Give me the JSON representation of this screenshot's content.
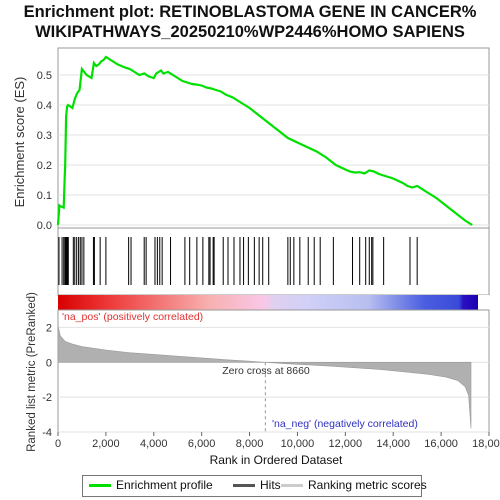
{
  "title_line1": "Enrichment plot: RETINOBLASTOMA GENE IN CANCER%",
  "title_line2": "WIKIPATHWAYS_20250210%WP2446%HOMO SAPIENS",
  "chart_data": {
    "type": "line",
    "es_panel": {
      "ylabel": "Enrichment score (ES)",
      "ylim": [
        -0.01,
        0.59
      ],
      "yticks": [
        "0.0",
        "0.1",
        "0.2",
        "0.3",
        "0.4",
        "0.5"
      ],
      "grid": true,
      "series": [
        {
          "name": "Enrichment profile",
          "color": "#00e000",
          "x": [
            0,
            60,
            120,
            180,
            240,
            280,
            300,
            340,
            380,
            420,
            600,
            700,
            800,
            900,
            1000,
            1100,
            1200,
            1300,
            1400,
            1500,
            1600,
            1700,
            1800,
            1900,
            2000,
            2200,
            2500,
            2800,
            3000,
            3200,
            3400,
            3600,
            3800,
            4000,
            4100,
            4200,
            4300,
            4400,
            4600,
            4800,
            5000,
            5200,
            5400,
            5600,
            5800,
            6000,
            6200,
            6400,
            6600,
            6800,
            7000,
            7300,
            7600,
            8000,
            8400,
            8800,
            9200,
            9600,
            10000,
            10400,
            10800,
            11200,
            11600,
            12000,
            12200,
            12400,
            12600,
            12800,
            13000,
            13200,
            13400,
            13600,
            14000,
            14400,
            14600,
            14800,
            15000,
            15400,
            15800,
            16200,
            16600,
            17000,
            17300
          ],
          "values": [
            0.0,
            0.065,
            0.062,
            0.06,
            0.058,
            0.16,
            0.2,
            0.36,
            0.395,
            0.4,
            0.39,
            0.42,
            0.44,
            0.45,
            0.52,
            0.51,
            0.5,
            0.495,
            0.49,
            0.54,
            0.53,
            0.535,
            0.545,
            0.55,
            0.56,
            0.55,
            0.535,
            0.525,
            0.52,
            0.51,
            0.5,
            0.505,
            0.495,
            0.49,
            0.505,
            0.51,
            0.515,
            0.505,
            0.51,
            0.5,
            0.49,
            0.48,
            0.475,
            0.47,
            0.468,
            0.465,
            0.458,
            0.455,
            0.45,
            0.445,
            0.435,
            0.425,
            0.41,
            0.39,
            0.365,
            0.34,
            0.315,
            0.29,
            0.275,
            0.26,
            0.245,
            0.225,
            0.2,
            0.185,
            0.178,
            0.175,
            0.176,
            0.172,
            0.182,
            0.178,
            0.17,
            0.165,
            0.155,
            0.14,
            0.13,
            0.125,
            0.13,
            0.11,
            0.09,
            0.065,
            0.04,
            0.015,
            0.0
          ]
        }
      ]
    },
    "hits_panel": {
      "name": "Hits",
      "positions": [
        40,
        170,
        240,
        290,
        310,
        330,
        350,
        380,
        400,
        430,
        640,
        700,
        780,
        860,
        930,
        1000,
        1080,
        1480,
        1520,
        1760,
        2000,
        2950,
        3050,
        3600,
        3680,
        4050,
        4150,
        4250,
        4350,
        4700,
        5300,
        5500,
        5800,
        6050,
        6300,
        6350,
        6480,
        6520,
        6900,
        7100,
        7350,
        7600,
        7750,
        7950,
        8200,
        8400,
        8550,
        8800,
        9600,
        9700,
        9850,
        10100,
        10450,
        10700,
        10950,
        11500,
        12300,
        12600,
        12850,
        13000,
        13100,
        13150,
        13600,
        14700,
        15000
      ]
    },
    "ranked_panel": {
      "ylabel": "Ranked list metric (PreRanked)",
      "ylim": [
        -4,
        3
      ],
      "yticks": [
        "-4",
        "-2",
        "0",
        "2"
      ],
      "grid": true,
      "series_name": "Ranking metric scores",
      "x": [
        0,
        100,
        300,
        600,
        1000,
        2000,
        3000,
        4000,
        5000,
        6000,
        7000,
        8000,
        8660,
        9500,
        10500,
        11500,
        12500,
        13500,
        14500,
        15500,
        16200,
        16700,
        17000,
        17150,
        17250
      ],
      "values": [
        2.1,
        1.5,
        1.2,
        1.05,
        0.9,
        0.7,
        0.55,
        0.45,
        0.35,
        0.25,
        0.15,
        0.06,
        0.0,
        -0.08,
        -0.15,
        -0.23,
        -0.32,
        -0.42,
        -0.55,
        -0.7,
        -0.85,
        -1.05,
        -1.4,
        -1.9,
        -3.8
      ]
    },
    "x_axis": {
      "xlabel": "Rank in Ordered Dataset",
      "xlim": [
        0,
        18000
      ],
      "xticks": [
        "0",
        "2,000",
        "4,000",
        "6,000",
        "8,000",
        "10,000",
        "12,000",
        "14,000",
        "16,000",
        "18,000"
      ]
    },
    "annotations": {
      "pos_label": "'na_pos' (positively correlated)",
      "neg_label": "'na_neg' (negatively correlated)",
      "zero_cross": "Zero cross at 8660"
    },
    "colors": {
      "profile": "#00e000",
      "hits": "#000000",
      "pos": "#e02020",
      "neg": "#3030d0",
      "pos_text": "#e03030",
      "neg_text": "#3030c0"
    }
  },
  "legend": {
    "items": [
      {
        "label": "Enrichment profile",
        "color": "#00e000"
      },
      {
        "label": "Hits",
        "color": "#555555"
      },
      {
        "label": "Ranking metric scores",
        "color": "#cccccc"
      }
    ]
  }
}
